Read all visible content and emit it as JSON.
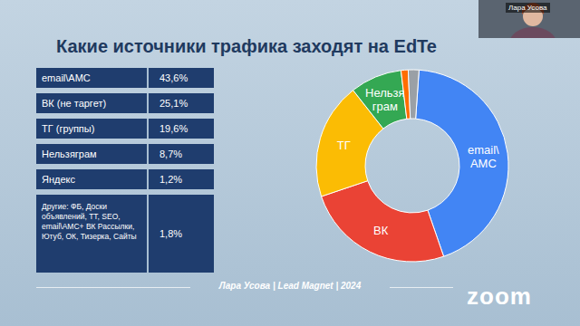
{
  "chart_data": {
    "type": "pie",
    "title": "Какие источники трафика заходят на EdTe",
    "categories": [
      "email\\AMC",
      "ВК (не таргет)",
      "ТГ (группы)",
      "Нельзяграм",
      "Яндекс",
      "Другие: ФБ, Доски объявлений, ТТ, SEO, email\\AMC+ ВК Рассылки, Ютуб, ОК, Тизерка, Сайты"
    ],
    "values": [
      43.6,
      25.1,
      19.6,
      8.7,
      1.2,
      1.8
    ],
    "value_labels": [
      "43,6%",
      "25,1%",
      "19,6%",
      "8,7%",
      "1,2%",
      "1,8%"
    ],
    "slice_labels": [
      [
        "email\\",
        "AMC"
      ],
      [
        "ВК"
      ],
      [
        "ТГ"
      ],
      [
        "Нельзя",
        "грам"
      ],
      null,
      null
    ],
    "colors": [
      "#4285f4",
      "#ea4335",
      "#fbbc04",
      "#34a853",
      "#ff6d01",
      "#9aa0a6"
    ]
  },
  "slide": {
    "footer": "Лара Усова | Lead Magnet | 2024",
    "zoom_logo": "zoom",
    "participant": "Лара Усова"
  }
}
